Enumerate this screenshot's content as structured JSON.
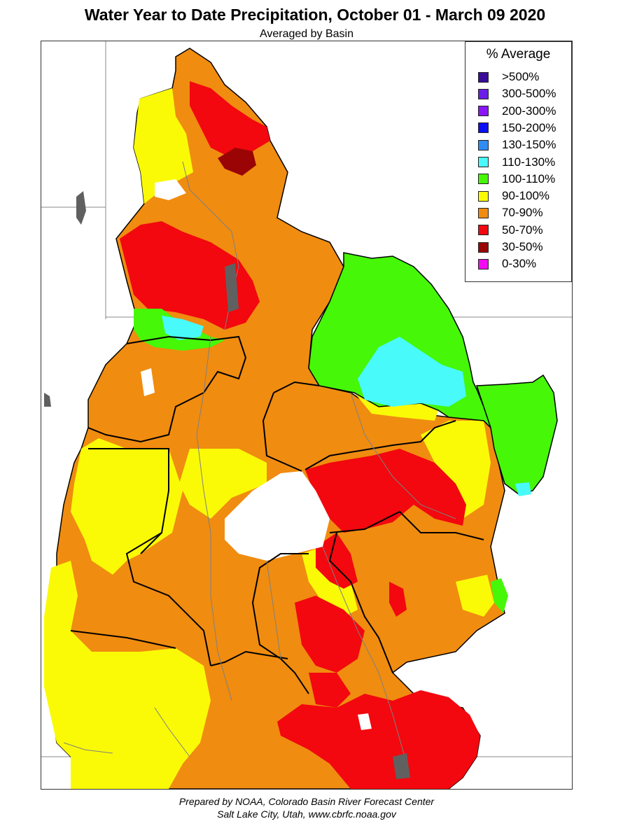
{
  "title": "Water Year to Date Precipitation, October 01  - March 09 2020",
  "subtitle": "Averaged by Basin",
  "legend": {
    "title": "% Average",
    "items": [
      {
        "label": ">500%",
        "color": "#3a0a9a"
      },
      {
        "label": "300-500%",
        "color": "#6a1ce8"
      },
      {
        "label": "200-300%",
        "color": "#8a14f8"
      },
      {
        "label": "150-200%",
        "color": "#0a10f5"
      },
      {
        "label": "130-150%",
        "color": "#2f8cf5"
      },
      {
        "label": "110-130%",
        "color": "#48fafa"
      },
      {
        "label": "100-110%",
        "color": "#46f708"
      },
      {
        "label": "90-100%",
        "color": "#fafa06"
      },
      {
        "label": "70-90%",
        "color": "#f08c10"
      },
      {
        "label": "50-70%",
        "color": "#f2080e"
      },
      {
        "label": "30-50%",
        "color": "#9a0404"
      },
      {
        "label": "0-30%",
        "color": "#f20af2"
      }
    ]
  },
  "credits": {
    "line1": "Prepared by NOAA, Colorado Basin River Forecast Center",
    "line2": "Salt Lake City, Utah, www.cbrfc.noaa.gov"
  }
}
